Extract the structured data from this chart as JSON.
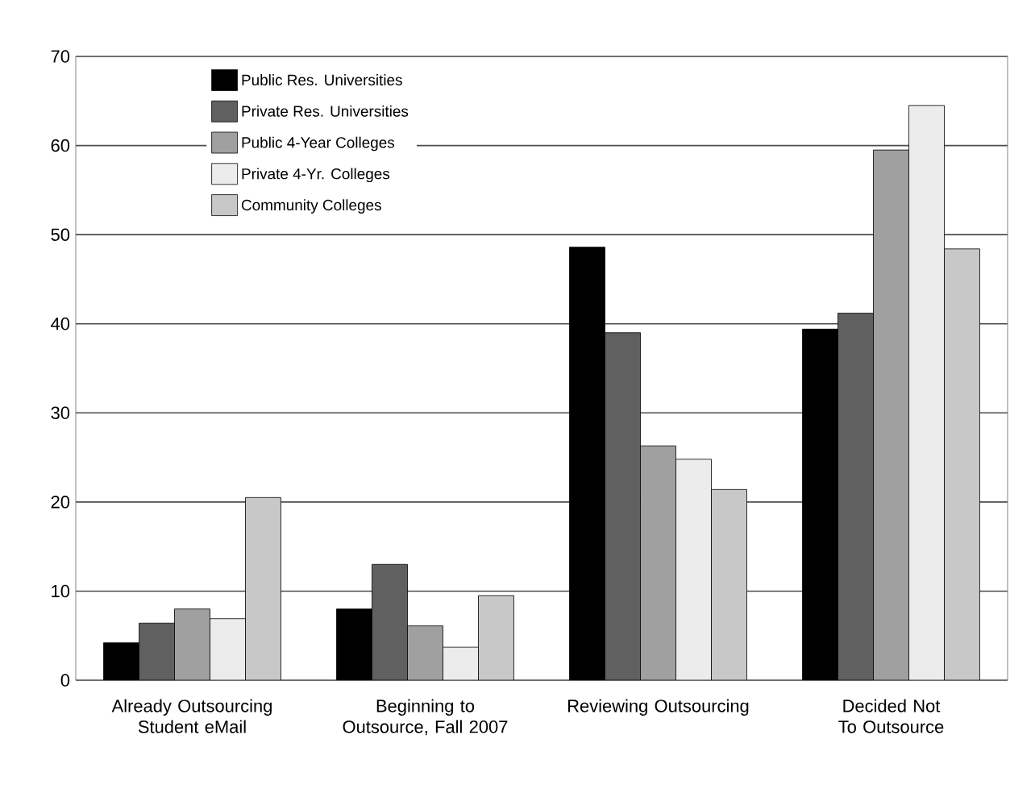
{
  "chart_data": {
    "type": "bar",
    "categories": [
      "Already Outsourcing Student eMail",
      "Beginning to Outsource, Fall 2007",
      "Reviewing Outsourcing",
      "Decided Not To Outsource"
    ],
    "series": [
      {
        "name": "Public Res. Universities",
        "color": "#000000",
        "values": [
          4.2,
          8.0,
          48.6,
          39.4
        ]
      },
      {
        "name": "Private Res. Universities",
        "color": "#606060",
        "values": [
          6.4,
          13.0,
          39.0,
          41.2
        ]
      },
      {
        "name": "Public 4-Year Colleges",
        "color": "#a0a0a0",
        "values": [
          8.0,
          6.1,
          26.3,
          59.5
        ]
      },
      {
        "name": "Private 4-Yr. Colleges",
        "color": "#ececec",
        "values": [
          6.9,
          3.7,
          24.8,
          64.5
        ]
      },
      {
        "name": "Community Colleges",
        "color": "#c8c8c8",
        "values": [
          20.5,
          9.5,
          21.4,
          48.4
        ]
      }
    ],
    "ylim": [
      0,
      70
    ],
    "yticks": [
      0,
      10,
      20,
      30,
      40,
      50,
      60,
      70
    ],
    "grid": "y",
    "legend": "top left"
  }
}
